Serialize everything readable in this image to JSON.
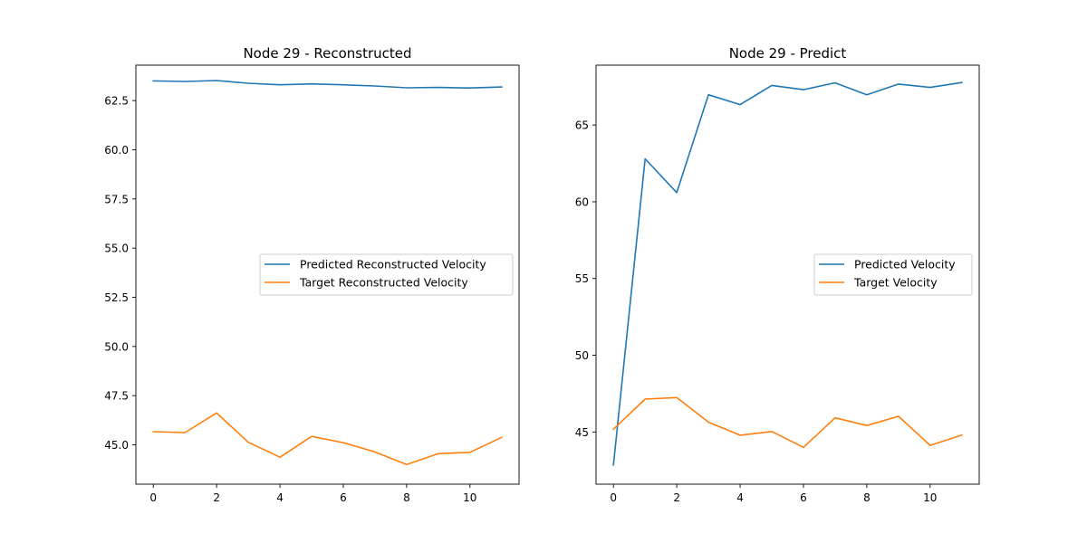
{
  "chart_data": [
    {
      "type": "line",
      "title": "Node 29 - Reconstructed",
      "xlabel": "",
      "ylabel": "",
      "x": [
        0,
        1,
        2,
        3,
        4,
        5,
        6,
        7,
        8,
        9,
        10,
        11
      ],
      "xlim": [
        -0.55,
        11.55
      ],
      "ylim": [
        43.0,
        64.3
      ],
      "xticks": [
        0,
        2,
        4,
        6,
        8,
        10
      ],
      "xtick_labels": [
        "0",
        "2",
        "4",
        "6",
        "8",
        "10"
      ],
      "yticks": [
        45.0,
        47.5,
        50.0,
        52.5,
        55.0,
        57.5,
        60.0,
        62.5
      ],
      "ytick_labels": [
        "45.0",
        "47.5",
        "50.0",
        "52.5",
        "55.0",
        "57.5",
        "60.0",
        "62.5"
      ],
      "grid": false,
      "legend_position": "center-right",
      "series": [
        {
          "name": "Predicted Reconstructed Velocity",
          "color": "#1f77b4",
          "values": [
            63.5,
            63.47,
            63.52,
            63.38,
            63.3,
            63.35,
            63.3,
            63.24,
            63.15,
            63.17,
            63.14,
            63.19
          ]
        },
        {
          "name": "Target Reconstructed Velocity",
          "color": "#ff7f0e",
          "values": [
            45.67,
            45.62,
            46.62,
            45.13,
            44.37,
            45.43,
            45.11,
            44.64,
            44.0,
            44.55,
            44.62,
            45.38
          ]
        }
      ]
    },
    {
      "type": "line",
      "title": "Node 29 - Predict",
      "xlabel": "",
      "ylabel": "",
      "x": [
        0,
        1,
        2,
        3,
        4,
        5,
        6,
        7,
        8,
        9,
        10,
        11
      ],
      "xlim": [
        -0.55,
        11.55
      ],
      "ylim": [
        41.6,
        68.9
      ],
      "xticks": [
        0,
        2,
        4,
        6,
        8,
        10
      ],
      "xtick_labels": [
        "0",
        "2",
        "4",
        "6",
        "8",
        "10"
      ],
      "yticks": [
        45,
        50,
        55,
        60,
        65
      ],
      "ytick_labels": [
        "45",
        "50",
        "55",
        "60",
        "65"
      ],
      "grid": false,
      "legend_position": "center-right",
      "series": [
        {
          "name": "Predicted Velocity",
          "color": "#1f77b4",
          "values": [
            42.85,
            62.8,
            60.6,
            66.97,
            66.33,
            67.58,
            67.3,
            67.75,
            66.97,
            67.67,
            67.45,
            67.77
          ]
        },
        {
          "name": "Target Velocity",
          "color": "#ff7f0e",
          "values": [
            45.18,
            47.14,
            47.24,
            45.64,
            44.79,
            45.03,
            44.0,
            45.92,
            45.42,
            46.02,
            44.13,
            44.8
          ]
        }
      ]
    }
  ]
}
